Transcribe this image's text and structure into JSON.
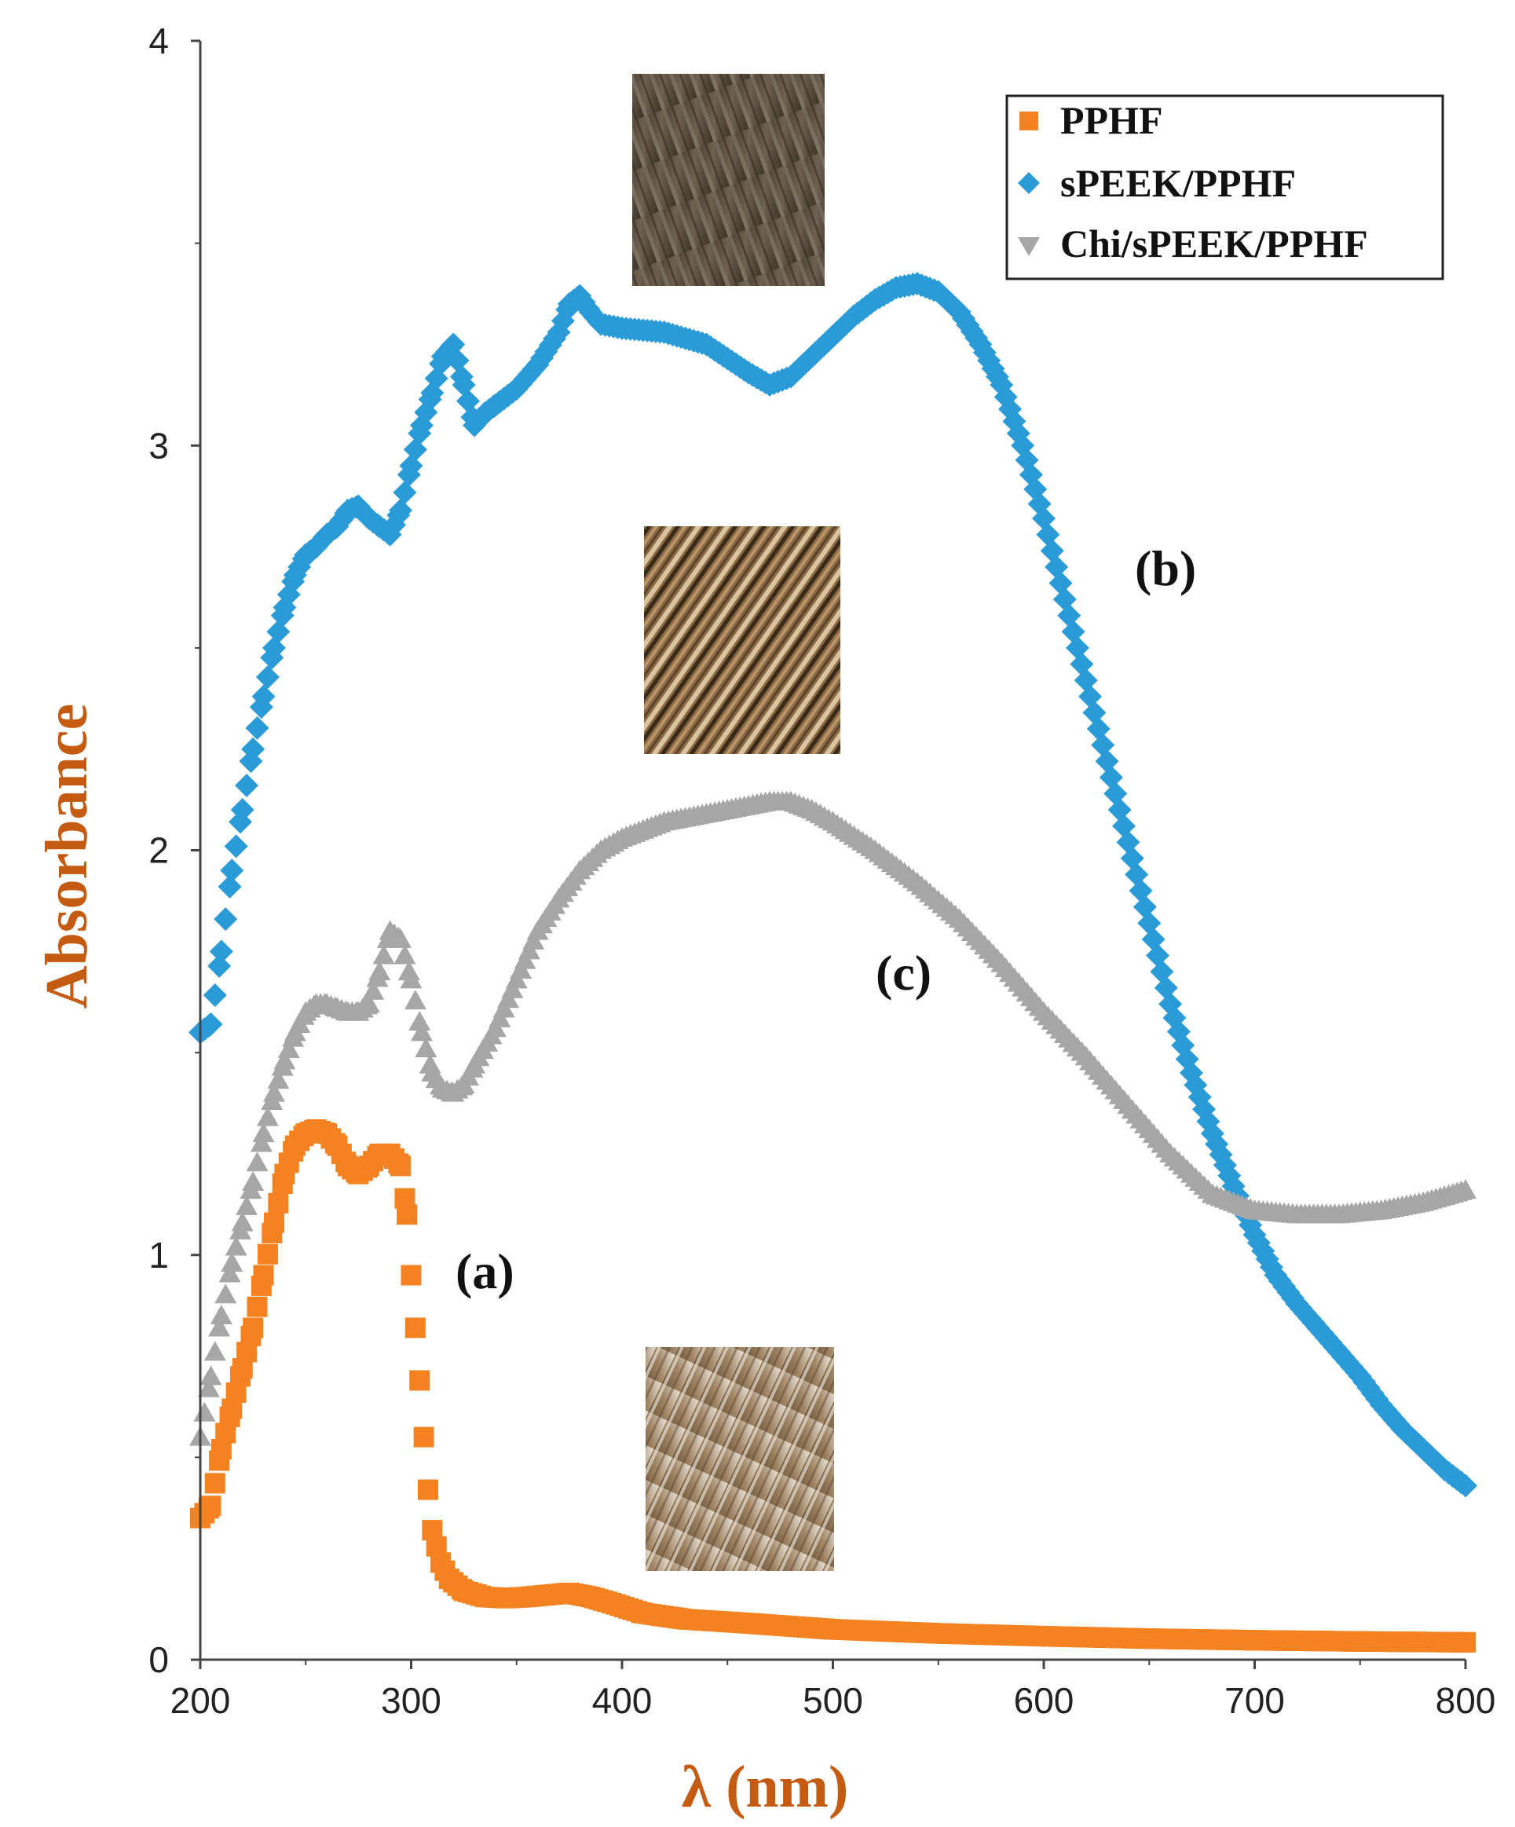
{
  "chart_data": {
    "type": "scatter",
    "xlabel": "λ (nm)",
    "ylabel": "Absorbance",
    "xlim": [
      200,
      800
    ],
    "ylim": [
      0,
      4
    ],
    "xticks": [
      "200",
      "300",
      "400",
      "500",
      "600",
      "700",
      "800"
    ],
    "yticks": [
      "0",
      "1",
      "2",
      "3",
      "4"
    ],
    "grid": false,
    "legend_position": "top-right",
    "series": [
      {
        "name": "PPHF",
        "label": "(a)",
        "color": "#f58220",
        "marker": "square",
        "points": [
          [
            200,
            0.35
          ],
          [
            205,
            0.38
          ],
          [
            210,
            0.52
          ],
          [
            215,
            0.62
          ],
          [
            220,
            0.72
          ],
          [
            225,
            0.82
          ],
          [
            230,
            0.95
          ],
          [
            235,
            1.08
          ],
          [
            240,
            1.2
          ],
          [
            245,
            1.27
          ],
          [
            250,
            1.3
          ],
          [
            255,
            1.31
          ],
          [
            260,
            1.3
          ],
          [
            265,
            1.27
          ],
          [
            270,
            1.22
          ],
          [
            275,
            1.2
          ],
          [
            280,
            1.22
          ],
          [
            285,
            1.25
          ],
          [
            290,
            1.25
          ],
          [
            295,
            1.22
          ],
          [
            298,
            1.1
          ],
          [
            300,
            0.95
          ],
          [
            302,
            0.82
          ],
          [
            304,
            0.69
          ],
          [
            306,
            0.55
          ],
          [
            308,
            0.42
          ],
          [
            310,
            0.32
          ],
          [
            314,
            0.24
          ],
          [
            318,
            0.2
          ],
          [
            325,
            0.17
          ],
          [
            335,
            0.155
          ],
          [
            345,
            0.152
          ],
          [
            355,
            0.155
          ],
          [
            365,
            0.16
          ],
          [
            375,
            0.165
          ],
          [
            385,
            0.155
          ],
          [
            395,
            0.14
          ],
          [
            410,
            0.115
          ],
          [
            430,
            0.1
          ],
          [
            460,
            0.09
          ],
          [
            500,
            0.075
          ],
          [
            550,
            0.065
          ],
          [
            600,
            0.058
          ],
          [
            650,
            0.052
          ],
          [
            700,
            0.048
          ],
          [
            750,
            0.045
          ],
          [
            800,
            0.043
          ]
        ]
      },
      {
        "name": "sPEEK/PPHF",
        "label": "(b)",
        "color": "#2b9bd8",
        "marker": "diamond",
        "points": [
          [
            200,
            1.55
          ],
          [
            205,
            1.57
          ],
          [
            210,
            1.75
          ],
          [
            215,
            1.95
          ],
          [
            220,
            2.1
          ],
          [
            225,
            2.25
          ],
          [
            230,
            2.38
          ],
          [
            235,
            2.5
          ],
          [
            240,
            2.6
          ],
          [
            245,
            2.68
          ],
          [
            250,
            2.73
          ],
          [
            255,
            2.75
          ],
          [
            260,
            2.78
          ],
          [
            265,
            2.8
          ],
          [
            270,
            2.84
          ],
          [
            275,
            2.85
          ],
          [
            280,
            2.82
          ],
          [
            285,
            2.8
          ],
          [
            290,
            2.78
          ],
          [
            295,
            2.84
          ],
          [
            300,
            2.95
          ],
          [
            305,
            3.05
          ],
          [
            310,
            3.13
          ],
          [
            315,
            3.22
          ],
          [
            320,
            3.25
          ],
          [
            325,
            3.15
          ],
          [
            330,
            3.05
          ],
          [
            335,
            3.08
          ],
          [
            340,
            3.1
          ],
          [
            350,
            3.14
          ],
          [
            360,
            3.2
          ],
          [
            370,
            3.28
          ],
          [
            375,
            3.35
          ],
          [
            380,
            3.37
          ],
          [
            385,
            3.33
          ],
          [
            390,
            3.3
          ],
          [
            400,
            3.29
          ],
          [
            420,
            3.28
          ],
          [
            440,
            3.25
          ],
          [
            460,
            3.18
          ],
          [
            470,
            3.15
          ],
          [
            480,
            3.17
          ],
          [
            490,
            3.22
          ],
          [
            500,
            3.27
          ],
          [
            510,
            3.32
          ],
          [
            520,
            3.36
          ],
          [
            530,
            3.39
          ],
          [
            540,
            3.4
          ],
          [
            550,
            3.38
          ],
          [
            560,
            3.33
          ],
          [
            570,
            3.25
          ],
          [
            580,
            3.15
          ],
          [
            590,
            3.0
          ],
          [
            600,
            2.82
          ],
          [
            610,
            2.62
          ],
          [
            620,
            2.42
          ],
          [
            630,
            2.22
          ],
          [
            640,
            2.02
          ],
          [
            650,
            1.82
          ],
          [
            660,
            1.62
          ],
          [
            670,
            1.45
          ],
          [
            680,
            1.3
          ],
          [
            690,
            1.17
          ],
          [
            700,
            1.05
          ],
          [
            710,
            0.95
          ],
          [
            720,
            0.88
          ],
          [
            730,
            0.82
          ],
          [
            740,
            0.76
          ],
          [
            750,
            0.7
          ],
          [
            760,
            0.63
          ],
          [
            770,
            0.57
          ],
          [
            780,
            0.52
          ],
          [
            790,
            0.47
          ],
          [
            800,
            0.43
          ]
        ]
      },
      {
        "name": "Chi/sPEEK/PPHF",
        "label": "(c)",
        "color": "#a6a6a6",
        "marker": "triangle",
        "points": [
          [
            200,
            0.55
          ],
          [
            205,
            0.7
          ],
          [
            210,
            0.85
          ],
          [
            215,
            0.98
          ],
          [
            220,
            1.08
          ],
          [
            225,
            1.18
          ],
          [
            230,
            1.3
          ],
          [
            235,
            1.4
          ],
          [
            240,
            1.48
          ],
          [
            245,
            1.55
          ],
          [
            250,
            1.6
          ],
          [
            255,
            1.62
          ],
          [
            260,
            1.62
          ],
          [
            265,
            1.61
          ],
          [
            270,
            1.6
          ],
          [
            275,
            1.6
          ],
          [
            280,
            1.62
          ],
          [
            285,
            1.7
          ],
          [
            290,
            1.8
          ],
          [
            295,
            1.78
          ],
          [
            300,
            1.68
          ],
          [
            305,
            1.55
          ],
          [
            310,
            1.45
          ],
          [
            315,
            1.41
          ],
          [
            320,
            1.4
          ],
          [
            325,
            1.42
          ],
          [
            330,
            1.47
          ],
          [
            340,
            1.56
          ],
          [
            350,
            1.68
          ],
          [
            360,
            1.8
          ],
          [
            370,
            1.88
          ],
          [
            380,
            1.95
          ],
          [
            390,
            2.0
          ],
          [
            400,
            2.03
          ],
          [
            420,
            2.07
          ],
          [
            440,
            2.09
          ],
          [
            460,
            2.11
          ],
          [
            470,
            2.12
          ],
          [
            480,
            2.12
          ],
          [
            490,
            2.1
          ],
          [
            500,
            2.07
          ],
          [
            520,
            2.0
          ],
          [
            540,
            1.92
          ],
          [
            560,
            1.83
          ],
          [
            580,
            1.72
          ],
          [
            600,
            1.6
          ],
          [
            620,
            1.49
          ],
          [
            640,
            1.37
          ],
          [
            660,
            1.25
          ],
          [
            680,
            1.15
          ],
          [
            700,
            1.11
          ],
          [
            720,
            1.1
          ],
          [
            740,
            1.1
          ],
          [
            760,
            1.11
          ],
          [
            780,
            1.13
          ],
          [
            800,
            1.16
          ]
        ]
      }
    ],
    "legend": [
      "PPHF",
      "sPEEK/PPHF",
      "Chi/sPEEK/PPHF"
    ],
    "annotations": [
      "(a)",
      "(b)",
      "(c)"
    ]
  }
}
